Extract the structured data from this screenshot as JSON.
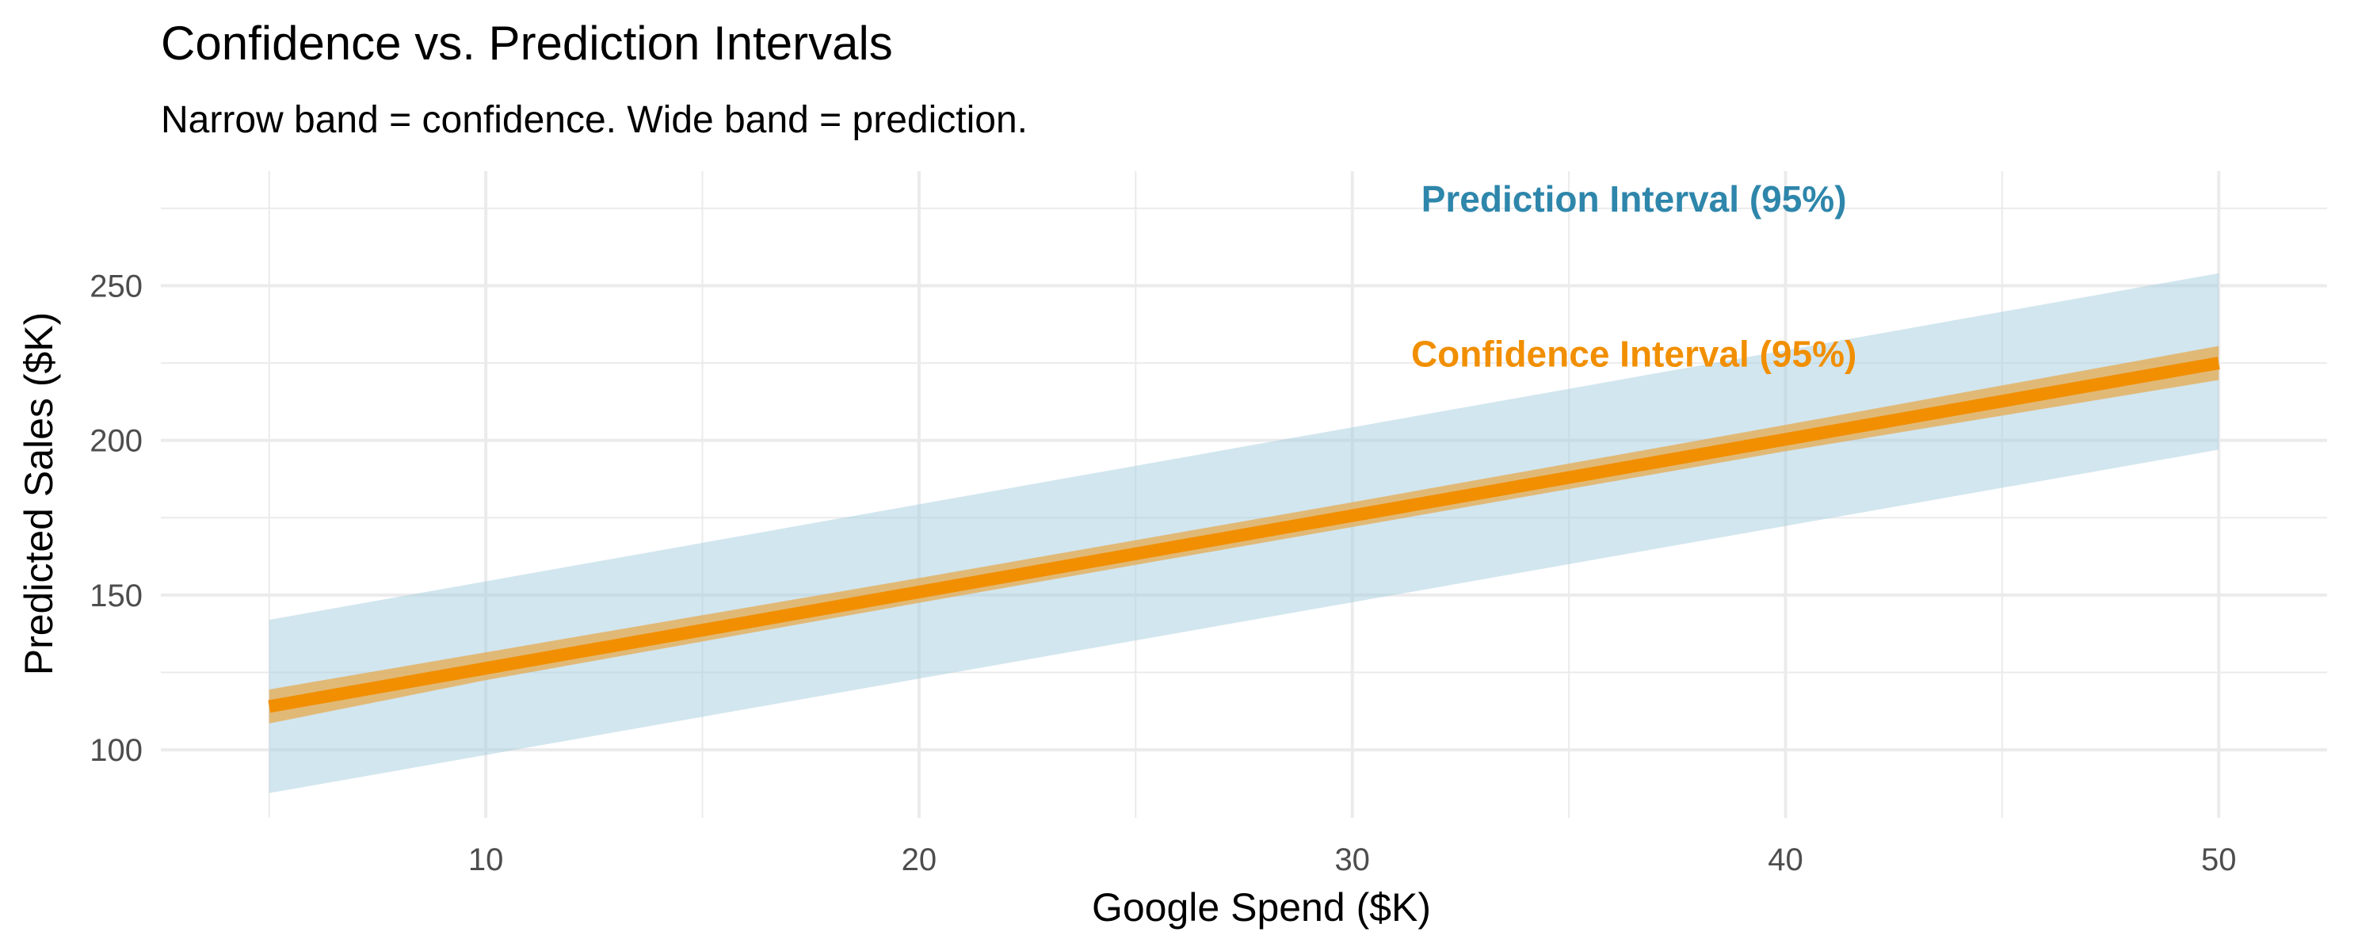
{
  "chart_data": {
    "type": "line",
    "title": "Confidence vs. Prediction Intervals",
    "subtitle": "Narrow band = confidence. Wide band = prediction.",
    "xlabel": "Google Spend ($K)",
    "ylabel": "Predicted Sales ($K)",
    "xlim": [
      2.5,
      52.5
    ],
    "ylim": [
      78,
      287
    ],
    "x_ticks": [
      10,
      20,
      30,
      40,
      50
    ],
    "y_ticks": [
      100,
      150,
      200,
      250
    ],
    "x_minor_ticks": [
      5,
      15,
      25,
      35,
      45
    ],
    "y_minor_ticks": [
      125,
      175,
      225,
      275
    ],
    "grid": true,
    "fit_line": {
      "x": [
        5,
        50
      ],
      "y": [
        114,
        225
      ]
    },
    "confidence_band": {
      "x": [
        5,
        10,
        20,
        30,
        40,
        50
      ],
      "lower": [
        108.5,
        122.5,
        147.5,
        172,
        196.5,
        219.5
      ],
      "upper": [
        119.5,
        131.5,
        155.5,
        180,
        205,
        230.5
      ]
    },
    "prediction_band": {
      "x": [
        5,
        50
      ],
      "lower": [
        86,
        197
      ],
      "upper": [
        142,
        254
      ]
    },
    "annotations": [
      {
        "text": "Prediction Interval (95%)",
        "x": 36.5,
        "y": 278,
        "color": "#2e86ab"
      },
      {
        "text": "Confidence Interval (95%)",
        "x": 36.5,
        "y": 228,
        "color": "#f18f01"
      }
    ],
    "colors": {
      "prediction_fill": "#a6cde0",
      "confidence_fill": "#e6a94f",
      "line": "#f18f01",
      "grid": "#ebebeb"
    }
  }
}
